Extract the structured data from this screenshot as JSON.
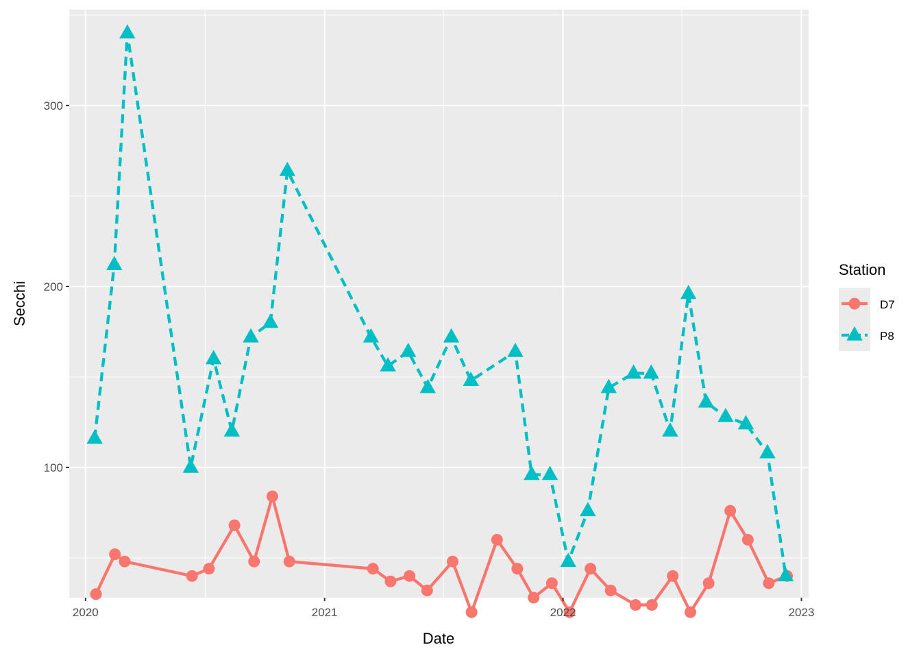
{
  "chart_data": {
    "type": "line",
    "xlabel": "Date",
    "ylabel": "Secchi",
    "x_tick_labels": [
      "2020",
      "2021",
      "2022",
      "2023"
    ],
    "y_ticks": [
      100,
      200,
      300
    ],
    "xlim": [
      "2019-12-07",
      "2023-01-12"
    ],
    "ylim": [
      28,
      353
    ],
    "grid": true,
    "legend": {
      "title": "Station",
      "placement": "right"
    },
    "series": [
      {
        "name": "D7",
        "color": "#F8766D",
        "line": "solid",
        "marker": "circle",
        "points": [
          [
            "2020-01-17",
            30
          ],
          [
            "2020-02-15",
            52
          ],
          [
            "2020-03-01",
            48
          ],
          [
            "2020-06-12",
            40
          ],
          [
            "2020-07-08",
            44
          ],
          [
            "2020-08-16",
            68
          ],
          [
            "2020-09-15",
            48
          ],
          [
            "2020-10-13",
            84
          ],
          [
            "2020-11-08",
            48
          ],
          [
            "2021-03-16",
            44
          ],
          [
            "2021-04-12",
            37
          ],
          [
            "2021-05-11",
            40
          ],
          [
            "2021-06-07",
            32
          ],
          [
            "2021-07-16",
            48
          ],
          [
            "2021-08-14",
            20
          ],
          [
            "2021-09-22",
            60
          ],
          [
            "2021-10-23",
            44
          ],
          [
            "2021-11-17",
            28
          ],
          [
            "2021-12-15",
            36
          ],
          [
            "2022-01-11",
            20
          ],
          [
            "2022-02-12",
            44
          ],
          [
            "2022-03-15",
            32
          ],
          [
            "2022-04-22",
            24
          ],
          [
            "2022-05-17",
            24
          ],
          [
            "2022-06-18",
            40
          ],
          [
            "2022-07-15",
            20
          ],
          [
            "2022-08-12",
            36
          ],
          [
            "2022-09-14",
            76
          ],
          [
            "2022-10-11",
            60
          ],
          [
            "2022-11-12",
            36
          ],
          [
            "2022-12-10",
            40
          ]
        ]
      },
      {
        "name": "P8",
        "color": "#00BFC4",
        "line": "dashed",
        "marker": "triangle",
        "points": [
          [
            "2020-01-15",
            116
          ],
          [
            "2020-02-14",
            212
          ],
          [
            "2020-03-05",
            340
          ],
          [
            "2020-06-10",
            100
          ],
          [
            "2020-07-15",
            160
          ],
          [
            "2020-08-12",
            120
          ],
          [
            "2020-09-10",
            172
          ],
          [
            "2020-10-10",
            180
          ],
          [
            "2020-11-05",
            264
          ],
          [
            "2021-03-13",
            172
          ],
          [
            "2021-04-08",
            156
          ],
          [
            "2021-05-09",
            164
          ],
          [
            "2021-06-08",
            144
          ],
          [
            "2021-07-14",
            172
          ],
          [
            "2021-08-13",
            148
          ],
          [
            "2021-10-20",
            164
          ],
          [
            "2021-11-14",
            96
          ],
          [
            "2021-12-12",
            96
          ],
          [
            "2022-01-09",
            48
          ],
          [
            "2022-02-08",
            76
          ],
          [
            "2022-03-12",
            144
          ],
          [
            "2022-04-19",
            152
          ],
          [
            "2022-05-16",
            152
          ],
          [
            "2022-06-14",
            120
          ],
          [
            "2022-07-12",
            196
          ],
          [
            "2022-08-08",
            136
          ],
          [
            "2022-09-07",
            128
          ],
          [
            "2022-10-08",
            124
          ],
          [
            "2022-11-10",
            108
          ],
          [
            "2022-12-08",
            40
          ]
        ]
      }
    ]
  }
}
